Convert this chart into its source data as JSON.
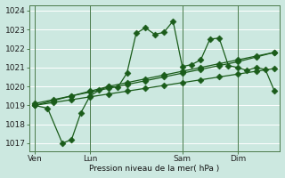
{
  "xlabel": "Pression niveau de la mer( hPa )",
  "bg_color": "#cce8e0",
  "grid_color": "#b0d8d0",
  "line_color": "#1a5c1a",
  "ylim": [
    1016.6,
    1024.3
  ],
  "xlim": [
    -0.3,
    13.3
  ],
  "xtick_labels": [
    "Ven",
    "Lun",
    "Sam",
    "Dim"
  ],
  "xtick_positions": [
    0,
    3,
    8,
    11
  ],
  "ytick_positions": [
    1017,
    1018,
    1019,
    1020,
    1021,
    1022,
    1023,
    1024
  ],
  "line1_x": [
    0,
    1,
    2,
    3,
    4,
    5,
    6,
    7,
    8,
    9,
    10,
    11,
    12,
    13
  ],
  "line1_y": [
    1019.0,
    1019.15,
    1019.3,
    1019.45,
    1019.6,
    1019.75,
    1019.9,
    1020.05,
    1020.2,
    1020.35,
    1020.5,
    1020.65,
    1020.8,
    1020.95
  ],
  "line2_x": [
    0,
    1,
    2,
    3,
    4,
    5,
    6,
    7,
    8,
    9,
    10,
    11,
    12,
    13
  ],
  "line2_y": [
    1019.0,
    1019.25,
    1019.5,
    1019.75,
    1020.0,
    1020.2,
    1020.4,
    1020.6,
    1020.8,
    1021.0,
    1021.2,
    1021.4,
    1021.6,
    1021.8
  ],
  "line3_x": [
    0,
    1,
    2,
    3,
    4,
    5,
    6,
    7,
    8,
    9,
    10,
    11,
    12,
    13
  ],
  "line3_y": [
    1019.1,
    1019.3,
    1019.5,
    1019.7,
    1019.9,
    1020.1,
    1020.3,
    1020.5,
    1020.7,
    1020.9,
    1021.1,
    1021.3,
    1021.55,
    1021.8
  ],
  "line4_x": [
    0,
    0.7,
    1.5,
    2.0,
    2.5,
    3.0,
    3.5,
    4.0,
    4.5,
    5.0,
    5.5,
    6.0,
    6.5,
    7.0,
    7.5,
    8.0,
    8.5,
    9.0,
    9.5,
    10.0,
    10.5,
    11.0,
    11.5,
    12.0,
    12.5,
    13.0
  ],
  "line4_y": [
    1019.0,
    1018.85,
    1017.0,
    1017.2,
    1018.6,
    1019.5,
    1019.8,
    1020.0,
    1019.95,
    1020.7,
    1022.8,
    1023.1,
    1022.75,
    1022.85,
    1023.45,
    1021.05,
    1021.15,
    1021.4,
    1022.5,
    1022.55,
    1021.1,
    1021.0,
    1020.85,
    1021.0,
    1020.9,
    1019.75
  ]
}
